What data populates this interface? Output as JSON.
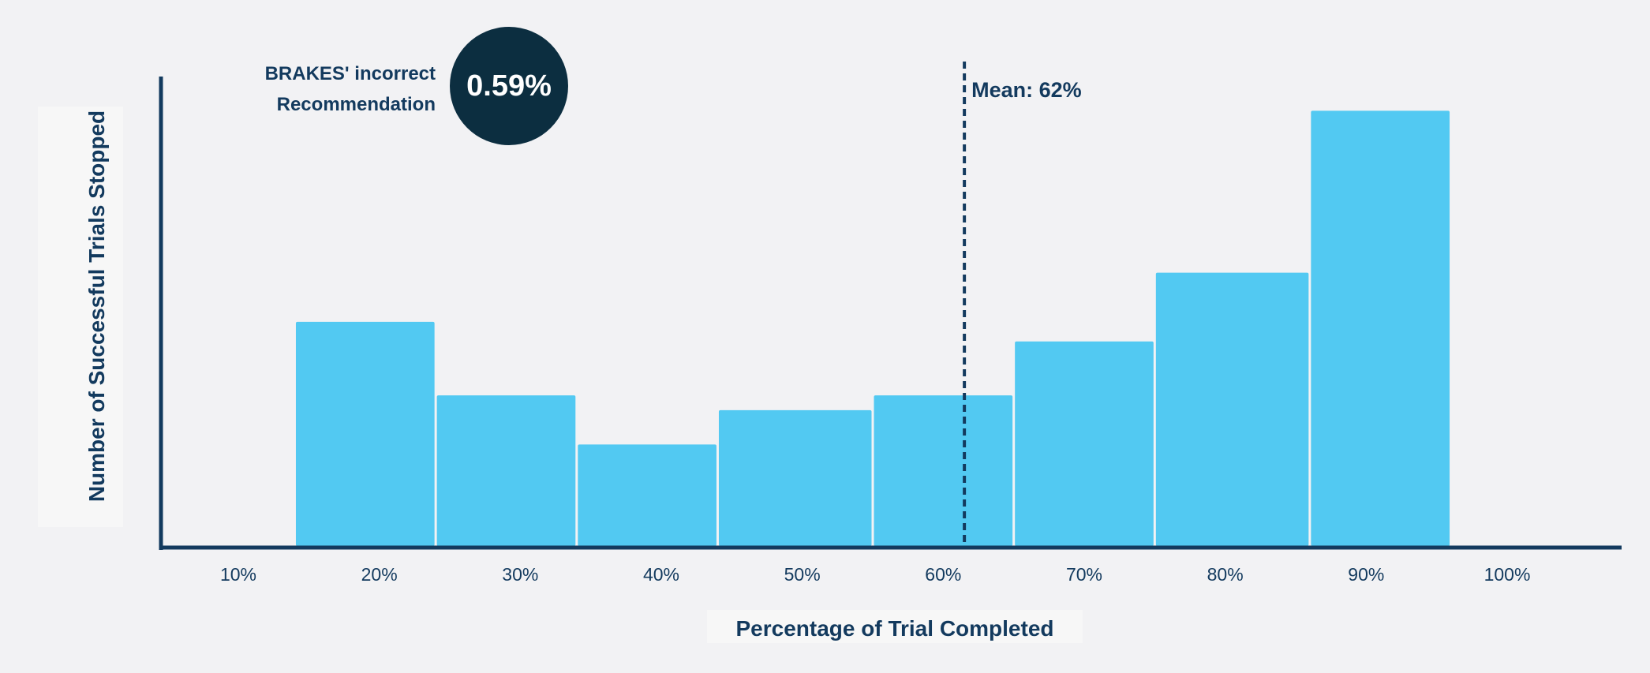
{
  "chart_data": {
    "type": "histogram",
    "title": "",
    "xlabel": "Percentage of Trial Completed",
    "ylabel": "Number of Successful Trials Stopped",
    "x_ticks": [
      "10%",
      "20%",
      "30%",
      "40%",
      "50%",
      "60%",
      "70%",
      "80%",
      "90%",
      "100%"
    ],
    "x_range": [
      5,
      107
    ],
    "bins": [
      {
        "start": 14,
        "end": 24,
        "value": 46
      },
      {
        "start": 24,
        "end": 34,
        "value": 31
      },
      {
        "start": 34,
        "end": 44,
        "value": 21
      },
      {
        "start": 44,
        "end": 55,
        "value": 28
      },
      {
        "start": 55,
        "end": 65,
        "value": 31
      },
      {
        "start": 65,
        "end": 75,
        "value": 42
      },
      {
        "start": 75,
        "end": 86,
        "value": 56
      },
      {
        "start": 86,
        "end": 96,
        "value": 89
      }
    ],
    "ylim": [
      0,
      100
    ],
    "y_ticks_shown": false,
    "bar_color": "#52c9f2",
    "axis_color": "#133a5e",
    "mean": {
      "value": 61.5,
      "label": "Mean: 62%"
    },
    "annotation": {
      "lines": [
        "BRAKES' incorrect",
        "Recommendation"
      ],
      "value": "0.59%",
      "badge_color": "#0c2e40"
    }
  }
}
